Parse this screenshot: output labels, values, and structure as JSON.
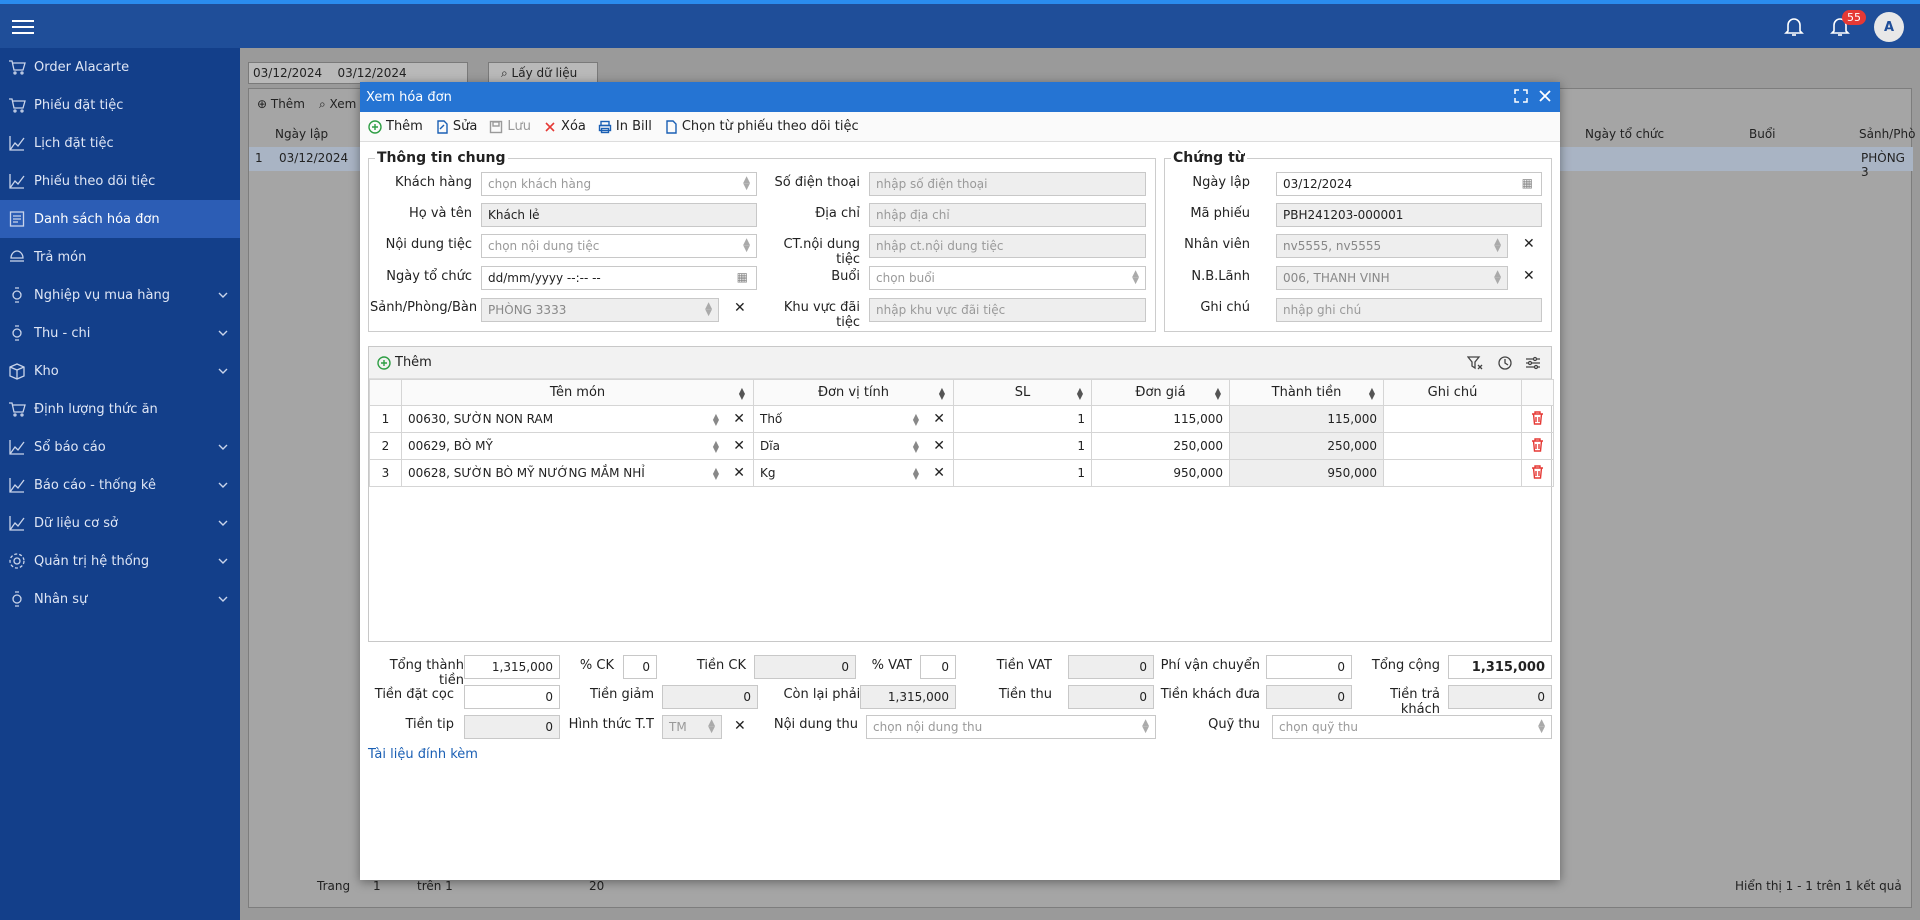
{
  "topbar": {
    "notif_count": "55",
    "avatar": "A"
  },
  "sidebar": {
    "items": [
      {
        "label": "Order Alacarte",
        "icon": "cart-icon",
        "chev": false
      },
      {
        "label": "Phiếu đặt tiệc",
        "icon": "cart-icon",
        "chev": false
      },
      {
        "label": "Lịch đặt tiệc",
        "icon": "chart-icon",
        "chev": false
      },
      {
        "label": "Phiếu theo dõi tiệc",
        "icon": "chart-icon",
        "chev": false
      },
      {
        "label": "Danh sách hóa đơn",
        "icon": "invoice-icon",
        "chev": false
      },
      {
        "label": "Trả món",
        "icon": "return-icon",
        "chev": false
      },
      {
        "label": "Nghiệp vụ mua hàng",
        "icon": "watch-icon",
        "chev": true
      },
      {
        "label": "Thu - chi",
        "icon": "watch-icon",
        "chev": true
      },
      {
        "label": "Kho",
        "icon": "box-icon",
        "chev": true
      },
      {
        "label": "Định lượng thức ăn",
        "icon": "cart-icon",
        "chev": false
      },
      {
        "label": "Sổ báo cáo",
        "icon": "chart-icon",
        "chev": true
      },
      {
        "label": "Báo cáo - thống kê",
        "icon": "chart-icon",
        "chev": true
      },
      {
        "label": "Dữ liệu cơ sở",
        "icon": "chart-icon",
        "chev": true
      },
      {
        "label": "Quản trị hệ thống",
        "icon": "gear-icon",
        "chev": true
      },
      {
        "label": "Nhân sự",
        "icon": "watch-icon",
        "chev": true
      }
    ]
  },
  "background": {
    "date_from": "03/12/2024",
    "date_to": "03/12/2024",
    "fetch_label": "Lấy dữ liệu",
    "add_label": "Thêm",
    "search_label": "Xem",
    "col_date": "Ngày lập",
    "col_org_date": "Ngày tổ chức",
    "col_session": "Buổi",
    "col_hall": "Sảnh/Phò",
    "row_index": "1",
    "row_date": "03/12/2024",
    "row_hall": "PHÒNG 3",
    "page_label": "Trang",
    "page_value": "1",
    "page_of": "trên 1",
    "page_size": "20",
    "summary": "Hiển thị 1 - 1 trên 1 kết quả"
  },
  "modal": {
    "title": "Xem hóa đơn",
    "toolbar": {
      "add": "Thêm",
      "edit": "Sửa",
      "save": "Lưu",
      "delete": "Xóa",
      "print": "In Bill",
      "pick": "Chọn từ phiếu theo dõi tiệc"
    },
    "general": {
      "legend": "Thông tin chung",
      "customer_label": "Khách hàng",
      "customer_ph": "chọn khách hàng",
      "phone_label": "Số điện thoại",
      "phone_ph": "nhập số điện thoại",
      "name_label": "Họ và tên",
      "name_value": "Khách lẻ",
      "address_label": "Địa chỉ",
      "address_ph": "nhập địa chỉ",
      "content_label": "Nội dung tiệc",
      "content_ph": "chọn nội dung tiệc",
      "ct_label": "CT.nội dung tiệc",
      "ct_ph": "nhập ct.nội dung tiệc",
      "date_label": "Ngày tổ chức",
      "date_value": "dd/mm/yyyy --:-- --",
      "session_label": "Buổi",
      "session_ph": "chọn buổi",
      "hall_label": "Sảnh/Phòng/Bàn",
      "hall_value": "PHÒNG 3333",
      "area_label": "Khu vực đãi tiệc",
      "area_ph": "nhập khu vực đãi tiệc"
    },
    "voucher": {
      "legend": "Chứng từ",
      "date_label": "Ngày lập",
      "date_value": "03/12/2024",
      "code_label": "Mã phiếu",
      "code_value": "PBH241203-000001",
      "staff_label": "Nhân viên",
      "staff_value": "nv5555, nv5555",
      "receiver_label": "N.B.Lãnh",
      "receiver_value": "006, THANH VINH",
      "note_label": "Ghi chú",
      "note_ph": "nhập ghi chú"
    },
    "grid": {
      "add": "Thêm",
      "columns": [
        "Tên món",
        "Đơn vị tính",
        "SL",
        "Đơn giá",
        "Thành tiền",
        "Ghi chú"
      ],
      "rows": [
        {
          "no": "1",
          "name": "00630, SƯỜN NON RAM",
          "unit": "Thố",
          "qty": "1",
          "price": "115,000",
          "total": "115,000",
          "note": ""
        },
        {
          "no": "2",
          "name": "00629, BÒ MỸ",
          "unit": "Dĩa",
          "qty": "1",
          "price": "250,000",
          "total": "250,000",
          "note": ""
        },
        {
          "no": "3",
          "name": "00628, SƯỜN BÒ MỸ NƯỚNG MẮM NHỈ",
          "unit": "Kg",
          "qty": "1",
          "price": "950,000",
          "total": "950,000",
          "note": ""
        }
      ]
    },
    "footer": {
      "subtotal_label": "Tổng thành tiền",
      "subtotal": "1,315,000",
      "ck_pct_label": "% CK",
      "ck_pct": "0",
      "ck_label": "Tiền CK",
      "ck": "0",
      "vat_pct_label": "% VAT",
      "vat_pct": "0",
      "vat_label": "Tiền VAT",
      "vat": "0",
      "ship_label": "Phí vận chuyển",
      "ship": "0",
      "total_label": "Tổng cộng",
      "total": "1,315,000",
      "deposit_label": "Tiền đặt cọc",
      "deposit": "0",
      "discount_label": "Tiền giảm",
      "discount": "0",
      "remain_label": "Còn lại phải thu",
      "remain": "1,315,000",
      "collected_label": "Tiền thu",
      "collected": "0",
      "given_label": "Tiền khách đưa",
      "given": "0",
      "change_label": "Tiền trả khách",
      "change": "0",
      "tip_label": "Tiền tip",
      "tip": "0",
      "paytype_label": "Hình thức T.T",
      "paytype": "TM",
      "paycontent_label": "Nội dung thu",
      "paycontent_ph": "chọn nội dung thu",
      "fund_label": "Quỹ thu",
      "fund_ph": "chọn quỹ thu",
      "attach": "Tài liệu đính kèm"
    }
  }
}
